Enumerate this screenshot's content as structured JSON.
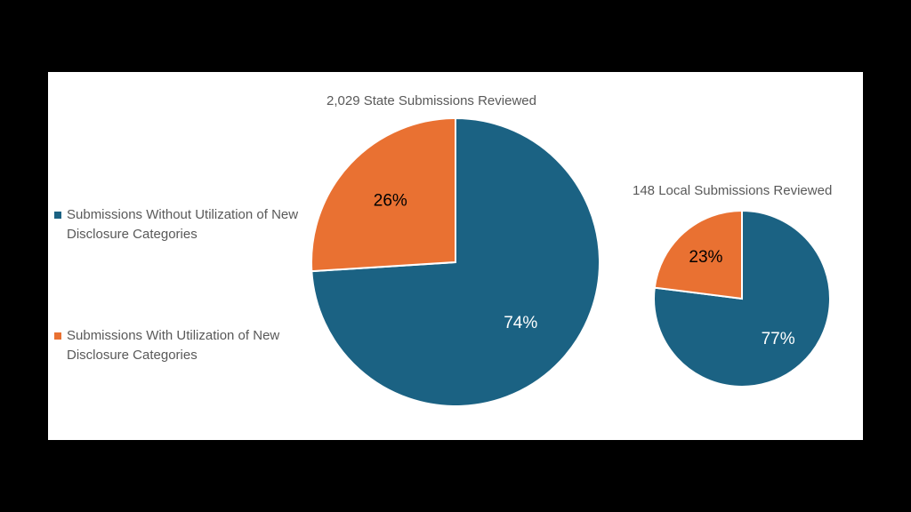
{
  "legend": [
    {
      "label": "Submissions Without Utilization of New Disclosure Categories",
      "color": "#1B6283"
    },
    {
      "label": "Submissions With Utilization of New Disclosure Categories",
      "color": "#E97132"
    }
  ],
  "chart_data": [
    {
      "type": "pie",
      "title": "2,029 State Submissions Reviewed",
      "categories": [
        "Submissions Without Utilization of New Disclosure Categories",
        "Submissions With Utilization of New Disclosure Categories"
      ],
      "values": [
        74,
        26
      ],
      "labels": [
        "74%",
        "26%"
      ],
      "colors": [
        "#1B6283",
        "#E97132"
      ],
      "label_colors": [
        "#ffffff",
        "#000000"
      ]
    },
    {
      "type": "pie",
      "title": "148 Local Submissions Reviewed",
      "categories": [
        "Submissions Without Utilization of New Disclosure Categories",
        "Submissions With Utilization of New Disclosure Categories"
      ],
      "values": [
        77,
        23
      ],
      "labels": [
        "77%",
        "23%"
      ],
      "colors": [
        "#1B6283",
        "#E97132"
      ],
      "label_colors": [
        "#ffffff",
        "#000000"
      ]
    }
  ]
}
